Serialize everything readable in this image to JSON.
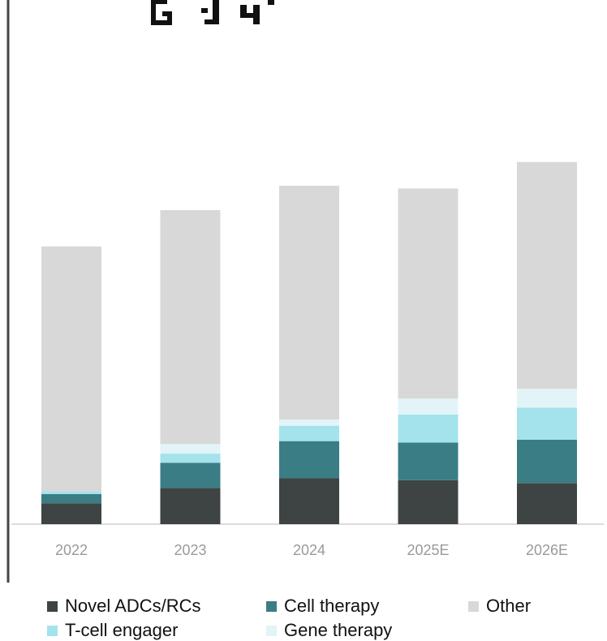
{
  "chart_data": {
    "type": "bar",
    "stacked": true,
    "title": "",
    "xlabel": "",
    "ylabel": "",
    "categories": [
      "2022",
      "2023",
      "2024",
      "2025E",
      "2026E"
    ],
    "series": [
      {
        "name": "Novel ADCs/RCs",
        "color": "#3d4443",
        "values": [
          30,
          52,
          66,
          63,
          59
        ]
      },
      {
        "name": "Cell therapy",
        "color": "#3a7d85",
        "values": [
          13,
          36,
          53,
          54,
          62
        ]
      },
      {
        "name": "T-cell engager",
        "color": "#a4e3eb",
        "values": [
          4,
          13,
          22,
          40,
          46
        ]
      },
      {
        "name": "Gene therapy",
        "color": "#e2f4f7",
        "values": [
          0,
          14,
          9,
          23,
          27
        ]
      },
      {
        "name": "Other",
        "color": "#d8d8d8",
        "values": [
          351,
          335,
          335,
          301,
          325
        ]
      }
    ],
    "legend_position": "bottom",
    "grid": false,
    "ylim": [
      0,
      600
    ]
  },
  "legend": {
    "items": [
      {
        "label": "Novel ADCs/RCs",
        "color": "#3d4443"
      },
      {
        "label": "Cell therapy",
        "color": "#3a7d85"
      },
      {
        "label": "Other",
        "color": "#d8d8d8"
      },
      {
        "label": "T-cell engager",
        "color": "#a4e3eb"
      },
      {
        "label": "Gene therapy",
        "color": "#e2f4f7"
      }
    ]
  }
}
